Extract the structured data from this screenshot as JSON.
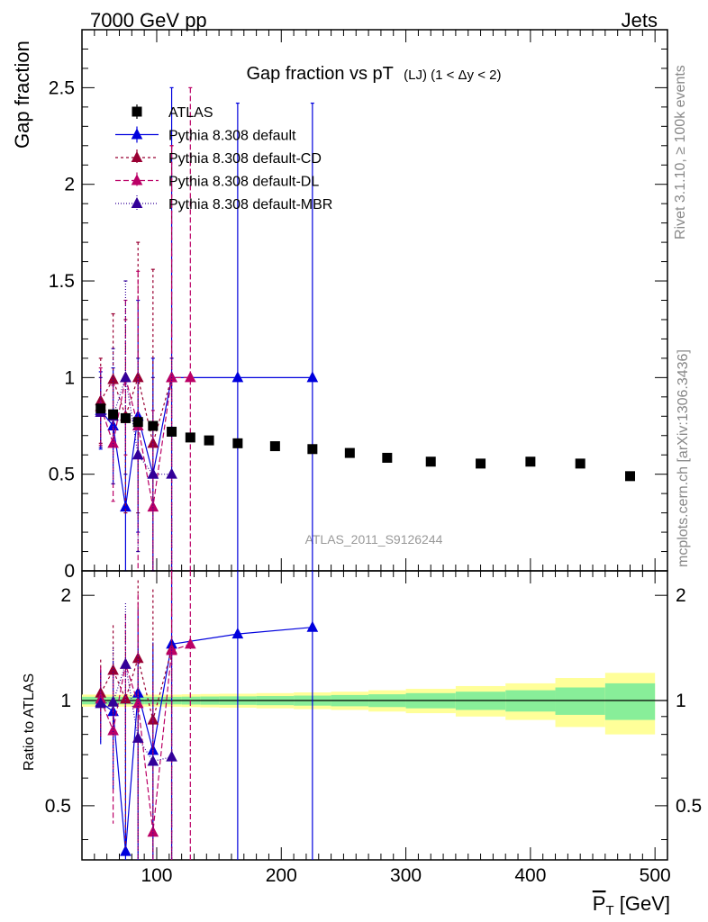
{
  "header": {
    "left": "7000 GeV pp",
    "right": "Jets"
  },
  "side": {
    "rivet": "Rivet 3.1.10, ≥ 100k events",
    "mcplots": "mcplots.cern.ch [arXiv:1306.3436]"
  },
  "chart_data": {
    "type": "scatter",
    "title_main": "Gap fraction vs pT",
    "title_sub": "(LJ)  (1 < Δy < 2)",
    "ylabel": "Gap fraction",
    "ratio_ylabel": "Ratio to ATLAS",
    "xlabel_p": "P",
    "xlabel_sub": "T",
    "xlabel_unit": " [GeV]",
    "watermark": "ATLAS_2011_S9126244",
    "xlim": [
      40,
      510
    ],
    "ylim": [
      0,
      2.8
    ],
    "ratio_ylim": [
      0.35,
      2.35
    ],
    "xticks": [
      100,
      200,
      300,
      400,
      500
    ],
    "xtick_labels": [
      "100",
      "200",
      "300",
      "400",
      "500"
    ],
    "yticks": [
      0.5,
      1,
      1.5,
      2,
      2.5
    ],
    "ytick_labels": [
      "0.5",
      "1",
      "1.5",
      "2",
      "2.5"
    ],
    "yzero_label": "0",
    "ratio_yticks": [
      0.5,
      1,
      2
    ],
    "ratio_ytick_labels": [
      "0.5",
      "1",
      "2"
    ],
    "grid": false,
    "legend_position": "top-left",
    "band_edges": [
      40,
      60,
      70,
      80,
      90,
      105,
      120,
      135,
      150,
      180,
      210,
      240,
      270,
      300,
      340,
      380,
      420,
      460,
      500
    ],
    "band_inner": [
      0.025,
      0.025,
      0.025,
      0.025,
      0.025,
      0.025,
      0.026,
      0.027,
      0.028,
      0.03,
      0.033,
      0.037,
      0.042,
      0.05,
      0.06,
      0.07,
      0.09,
      0.12
    ],
    "band_outer": [
      0.04,
      0.04,
      0.04,
      0.04,
      0.04,
      0.04,
      0.042,
      0.044,
      0.046,
      0.05,
      0.055,
      0.06,
      0.07,
      0.08,
      0.1,
      0.12,
      0.16,
      0.2
    ],
    "band_colors": {
      "inner": "#88ee99",
      "outer": "#ffff99"
    },
    "series": [
      {
        "name": "ATLAS",
        "color": "#000000",
        "marker": "square",
        "x": [
          55,
          65,
          75,
          85,
          97,
          112,
          127,
          142,
          165,
          195,
          225,
          255,
          285,
          320,
          360,
          400,
          440,
          480
        ],
        "y": [
          0.84,
          0.81,
          0.79,
          0.77,
          0.75,
          0.72,
          0.69,
          0.675,
          0.66,
          0.645,
          0.63,
          0.61,
          0.585,
          0.565,
          0.555,
          0.565,
          0.555,
          0.49
        ]
      },
      {
        "name": "Pythia 8.308 default",
        "color": "#0000dd",
        "marker": "triangle",
        "dash": "",
        "x": [
          55,
          65,
          75,
          85,
          97,
          112,
          165,
          225
        ],
        "y": [
          0.83,
          0.75,
          0.33,
          0.8,
          0.5,
          1.0,
          1.0,
          1.0
        ],
        "err": [
          0.2,
          0.3,
          0.45,
          0.6,
          0.6,
          1.5,
          1.42,
          1.42
        ],
        "ratio": [
          0.99,
          0.93,
          0.37,
          1.05,
          0.72,
          1.45,
          1.55,
          1.62
        ]
      },
      {
        "name": "Pythia 8.308 default-CD",
        "color": "#990033",
        "marker": "triangle",
        "dash": "3 3",
        "x": [
          55,
          65,
          75,
          85,
          97,
          112
        ],
        "y": [
          0.88,
          0.99,
          0.8,
          1.0,
          0.66,
          1.0
        ],
        "err": [
          0.22,
          0.34,
          0.5,
          0.7,
          0.9,
          1.2
        ],
        "ratio": [
          1.05,
          1.22,
          1.01,
          1.32,
          0.88,
          1.4
        ]
      },
      {
        "name": "Pythia 8.308 default-DL",
        "color": "#bb0066",
        "marker": "triangle",
        "dash": "6 3",
        "x": [
          55,
          65,
          75,
          85,
          97,
          112,
          127
        ],
        "y": [
          0.85,
          0.66,
          1.0,
          0.75,
          0.33,
          1.0,
          1.0
        ],
        "err": [
          0.2,
          0.3,
          0.4,
          0.8,
          0.5,
          1.2,
          1.5
        ],
        "ratio": [
          1.01,
          0.82,
          1.27,
          0.98,
          0.42,
          1.39,
          1.45
        ]
      },
      {
        "name": "Pythia 8.308 default-MBR",
        "color": "#330099",
        "marker": "triangle",
        "dash": "1 2",
        "x": [
          55,
          65,
          75,
          85,
          97,
          112
        ],
        "y": [
          0.82,
          0.8,
          1.0,
          0.6,
          0.5,
          0.5
        ],
        "err": [
          0.18,
          0.35,
          0.5,
          0.5,
          0.5,
          0.6
        ],
        "ratio": [
          0.98,
          0.99,
          1.27,
          0.78,
          0.67,
          0.69
        ]
      }
    ]
  }
}
